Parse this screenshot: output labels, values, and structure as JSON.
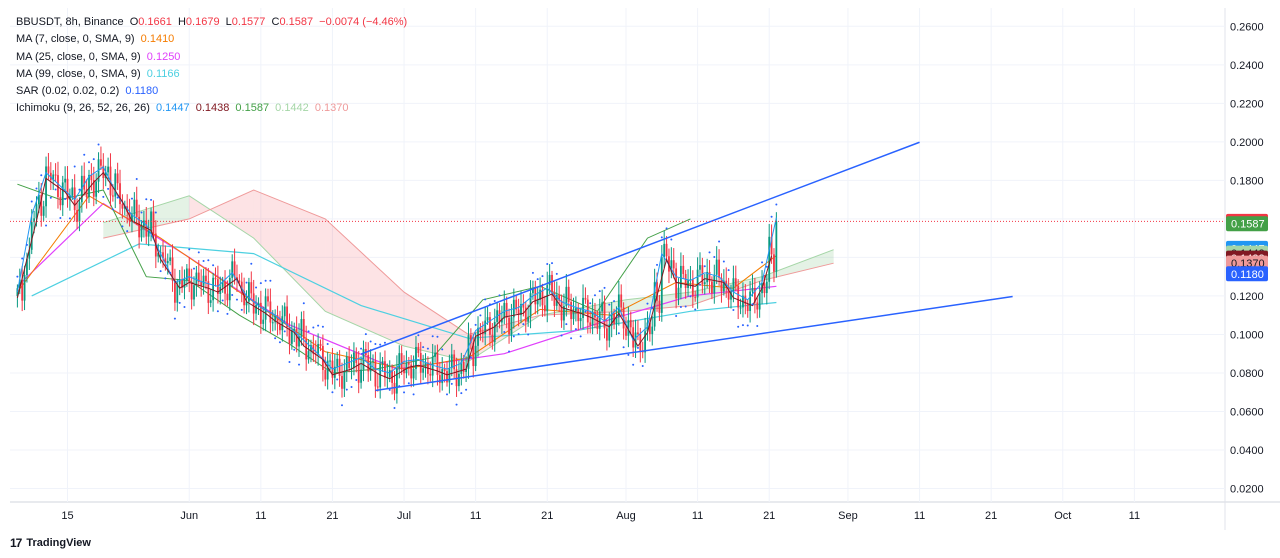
{
  "header": {
    "symbol": "BBUSDT, 8h, Binance",
    "open_label": "O",
    "open": "0.1661",
    "high_label": "H",
    "high": "0.1679",
    "low_label": "L",
    "low": "0.1577",
    "close_label": "C",
    "close": "0.1587",
    "change": "−0.0074 (−4.46%)"
  },
  "indicators": [
    {
      "label": "MA (7, close, 0, SMA, 9)",
      "values": [
        "0.1410"
      ],
      "colors": [
        "#f57c00"
      ]
    },
    {
      "label": "MA (25, close, 0, SMA, 9)",
      "values": [
        "0.1250"
      ],
      "colors": [
        "#e040fb"
      ]
    },
    {
      "label": "MA (99, close, 0, SMA, 9)",
      "values": [
        "0.1166"
      ],
      "colors": [
        "#4dd0e1"
      ]
    },
    {
      "label": "SAR (0.02, 0.02, 0.2)",
      "values": [
        "0.1180"
      ],
      "colors": [
        "#2962ff"
      ]
    },
    {
      "label": "Ichimoku (9, 26, 52, 26, 26)",
      "values": [
        "0.1447",
        "0.1438",
        "0.1587",
        "0.1442",
        "0.1370"
      ],
      "colors": [
        "#2196f3",
        "#801922",
        "#43a047",
        "#a5d6a7",
        "#ef9a9a"
      ]
    }
  ],
  "price_badges": [
    {
      "value": "0.1587",
      "price": 0.1587,
      "bg": "#f23645",
      "fg": "#ffffff"
    },
    {
      "value": "0.1587",
      "price": 0.1575,
      "bg": "#43a047",
      "fg": "#ffffff"
    },
    {
      "value": "0.1447",
      "price": 0.1447,
      "bg": "#2196f3",
      "fg": "#ffffff"
    },
    {
      "value": "0.1442",
      "price": 0.1422,
      "bg": "#a5d6a7",
      "fg": "#131722"
    },
    {
      "value": "0.1438",
      "price": 0.1396,
      "bg": "#801922",
      "fg": "#ffffff"
    },
    {
      "value": "0.1370",
      "price": 0.137,
      "bg": "#ef9a9a",
      "fg": "#131722"
    },
    {
      "value": "0.1180",
      "price": 0.1315,
      "bg": "#2962ff",
      "fg": "#ffffff"
    }
  ],
  "chart_data": {
    "type": "candlestick",
    "interval": "8h",
    "x_axis_labels": [
      "15",
      "Jun",
      "11",
      "21",
      "Jul",
      "11",
      "21",
      "Aug",
      "11",
      "21",
      "Sep",
      "11",
      "21",
      "Oct",
      "11"
    ],
    "x_axis_dates": [
      "2024-05-15",
      "2024-06-01",
      "2024-06-11",
      "2024-06-21",
      "2024-07-01",
      "2024-07-11",
      "2024-07-21",
      "2024-08-01",
      "2024-08-11",
      "2024-08-21",
      "2024-09-01",
      "2024-09-11",
      "2024-09-21",
      "2024-10-01",
      "2024-10-11"
    ],
    "y_axis_labels": [
      "0.2600",
      "0.2400",
      "0.2200",
      "0.2000",
      "0.1800",
      "0.1600",
      "0.1400",
      "0.1200",
      "0.1000",
      "0.0800",
      "0.0600",
      "0.0400",
      "0.0200"
    ],
    "ylim": [
      0.013,
      0.2695
    ],
    "grid": true,
    "current_price": 0.1587,
    "close_series": {
      "dates": [
        "2024-05-08",
        "2024-05-10",
        "2024-05-12",
        "2024-05-14",
        "2024-05-16",
        "2024-05-18",
        "2024-05-20",
        "2024-05-22",
        "2024-05-24",
        "2024-05-26",
        "2024-05-28",
        "2024-05-30",
        "2024-06-01",
        "2024-06-03",
        "2024-06-05",
        "2024-06-07",
        "2024-06-09",
        "2024-06-11",
        "2024-06-13",
        "2024-06-15",
        "2024-06-17",
        "2024-06-19",
        "2024-06-21",
        "2024-06-23",
        "2024-06-25",
        "2024-06-27",
        "2024-06-29",
        "2024-07-01",
        "2024-07-03",
        "2024-07-05",
        "2024-07-07",
        "2024-07-09",
        "2024-07-11",
        "2024-07-13",
        "2024-07-15",
        "2024-07-17",
        "2024-07-19",
        "2024-07-21",
        "2024-07-23",
        "2024-07-25",
        "2024-07-27",
        "2024-07-29",
        "2024-07-31",
        "2024-08-02",
        "2024-08-04",
        "2024-08-06",
        "2024-08-08",
        "2024-08-10",
        "2024-08-12",
        "2024-08-14",
        "2024-08-16",
        "2024-08-18",
        "2024-08-20",
        "2024-08-22"
      ],
      "values": [
        0.12,
        0.16,
        0.182,
        0.175,
        0.168,
        0.18,
        0.185,
        0.17,
        0.16,
        0.155,
        0.14,
        0.125,
        0.128,
        0.125,
        0.123,
        0.13,
        0.118,
        0.112,
        0.108,
        0.102,
        0.095,
        0.088,
        0.08,
        0.083,
        0.086,
        0.08,
        0.078,
        0.084,
        0.085,
        0.082,
        0.08,
        0.083,
        0.1,
        0.105,
        0.11,
        0.112,
        0.118,
        0.122,
        0.115,
        0.112,
        0.11,
        0.105,
        0.112,
        0.095,
        0.102,
        0.14,
        0.128,
        0.126,
        0.13,
        0.128,
        0.12,
        0.116,
        0.125,
        0.1587
      ]
    },
    "ma7": {
      "dates": [
        "2024-05-08",
        "2024-05-18",
        "2024-05-28",
        "2024-06-08",
        "2024-06-20",
        "2024-07-01",
        "2024-07-10",
        "2024-07-20",
        "2024-07-30",
        "2024-08-08",
        "2024-08-16",
        "2024-08-22"
      ],
      "values": [
        0.122,
        0.172,
        0.15,
        0.122,
        0.091,
        0.082,
        0.088,
        0.113,
        0.11,
        0.127,
        0.124,
        0.141
      ]
    },
    "ma25": {
      "dates": [
        "2024-05-08",
        "2024-05-20",
        "2024-06-01",
        "2024-06-15",
        "2024-06-30",
        "2024-07-15",
        "2024-07-30",
        "2024-08-10",
        "2024-08-22"
      ],
      "values": [
        0.125,
        0.168,
        0.14,
        0.105,
        0.082,
        0.09,
        0.108,
        0.12,
        0.125
      ]
    },
    "ma99": {
      "dates": [
        "2024-05-10",
        "2024-05-25",
        "2024-06-10",
        "2024-06-25",
        "2024-07-10",
        "2024-07-25",
        "2024-08-10",
        "2024-08-22"
      ],
      "values": [
        0.12,
        0.147,
        0.142,
        0.115,
        0.098,
        0.102,
        0.112,
        0.1166
      ]
    },
    "ichimoku_lagging_span": {
      "dates": [
        "2024-05-08",
        "2024-05-14",
        "2024-05-20",
        "2024-05-26",
        "2024-06-01",
        "2024-06-08",
        "2024-06-15",
        "2024-06-21",
        "2024-06-27",
        "2024-07-05",
        "2024-07-12",
        "2024-07-20",
        "2024-07-28",
        "2024-08-04",
        "2024-08-10"
      ],
      "values": [
        0.178,
        0.17,
        0.175,
        0.13,
        0.128,
        0.11,
        0.095,
        0.08,
        0.082,
        0.088,
        0.118,
        0.125,
        0.112,
        0.15,
        0.16
      ]
    },
    "ichimoku_cloud": {
      "dates": [
        "2024-05-20",
        "2024-06-01",
        "2024-06-10",
        "2024-06-20",
        "2024-07-01",
        "2024-07-10",
        "2024-07-20",
        "2024-08-01",
        "2024-08-10",
        "2024-08-20",
        "2024-08-30"
      ],
      "span_a": [
        0.158,
        0.172,
        0.15,
        0.112,
        0.094,
        0.086,
        0.11,
        0.118,
        0.122,
        0.13,
        0.144
      ],
      "span_b": [
        0.15,
        0.16,
        0.175,
        0.16,
        0.122,
        0.1,
        0.11,
        0.112,
        0.115,
        0.128,
        0.137
      ]
    },
    "trendlines": [
      {
        "from": [
          "2024-06-25",
          0.0898
        ],
        "to": [
          "2024-09-11",
          0.1998
        ],
        "color": "#2962ff"
      },
      {
        "from": [
          "2024-06-27",
          0.0709
        ],
        "to": [
          "2024-09-24",
          0.1197
        ],
        "color": "#2962ff"
      }
    ]
  },
  "footer": {
    "brand": "TradingView"
  }
}
